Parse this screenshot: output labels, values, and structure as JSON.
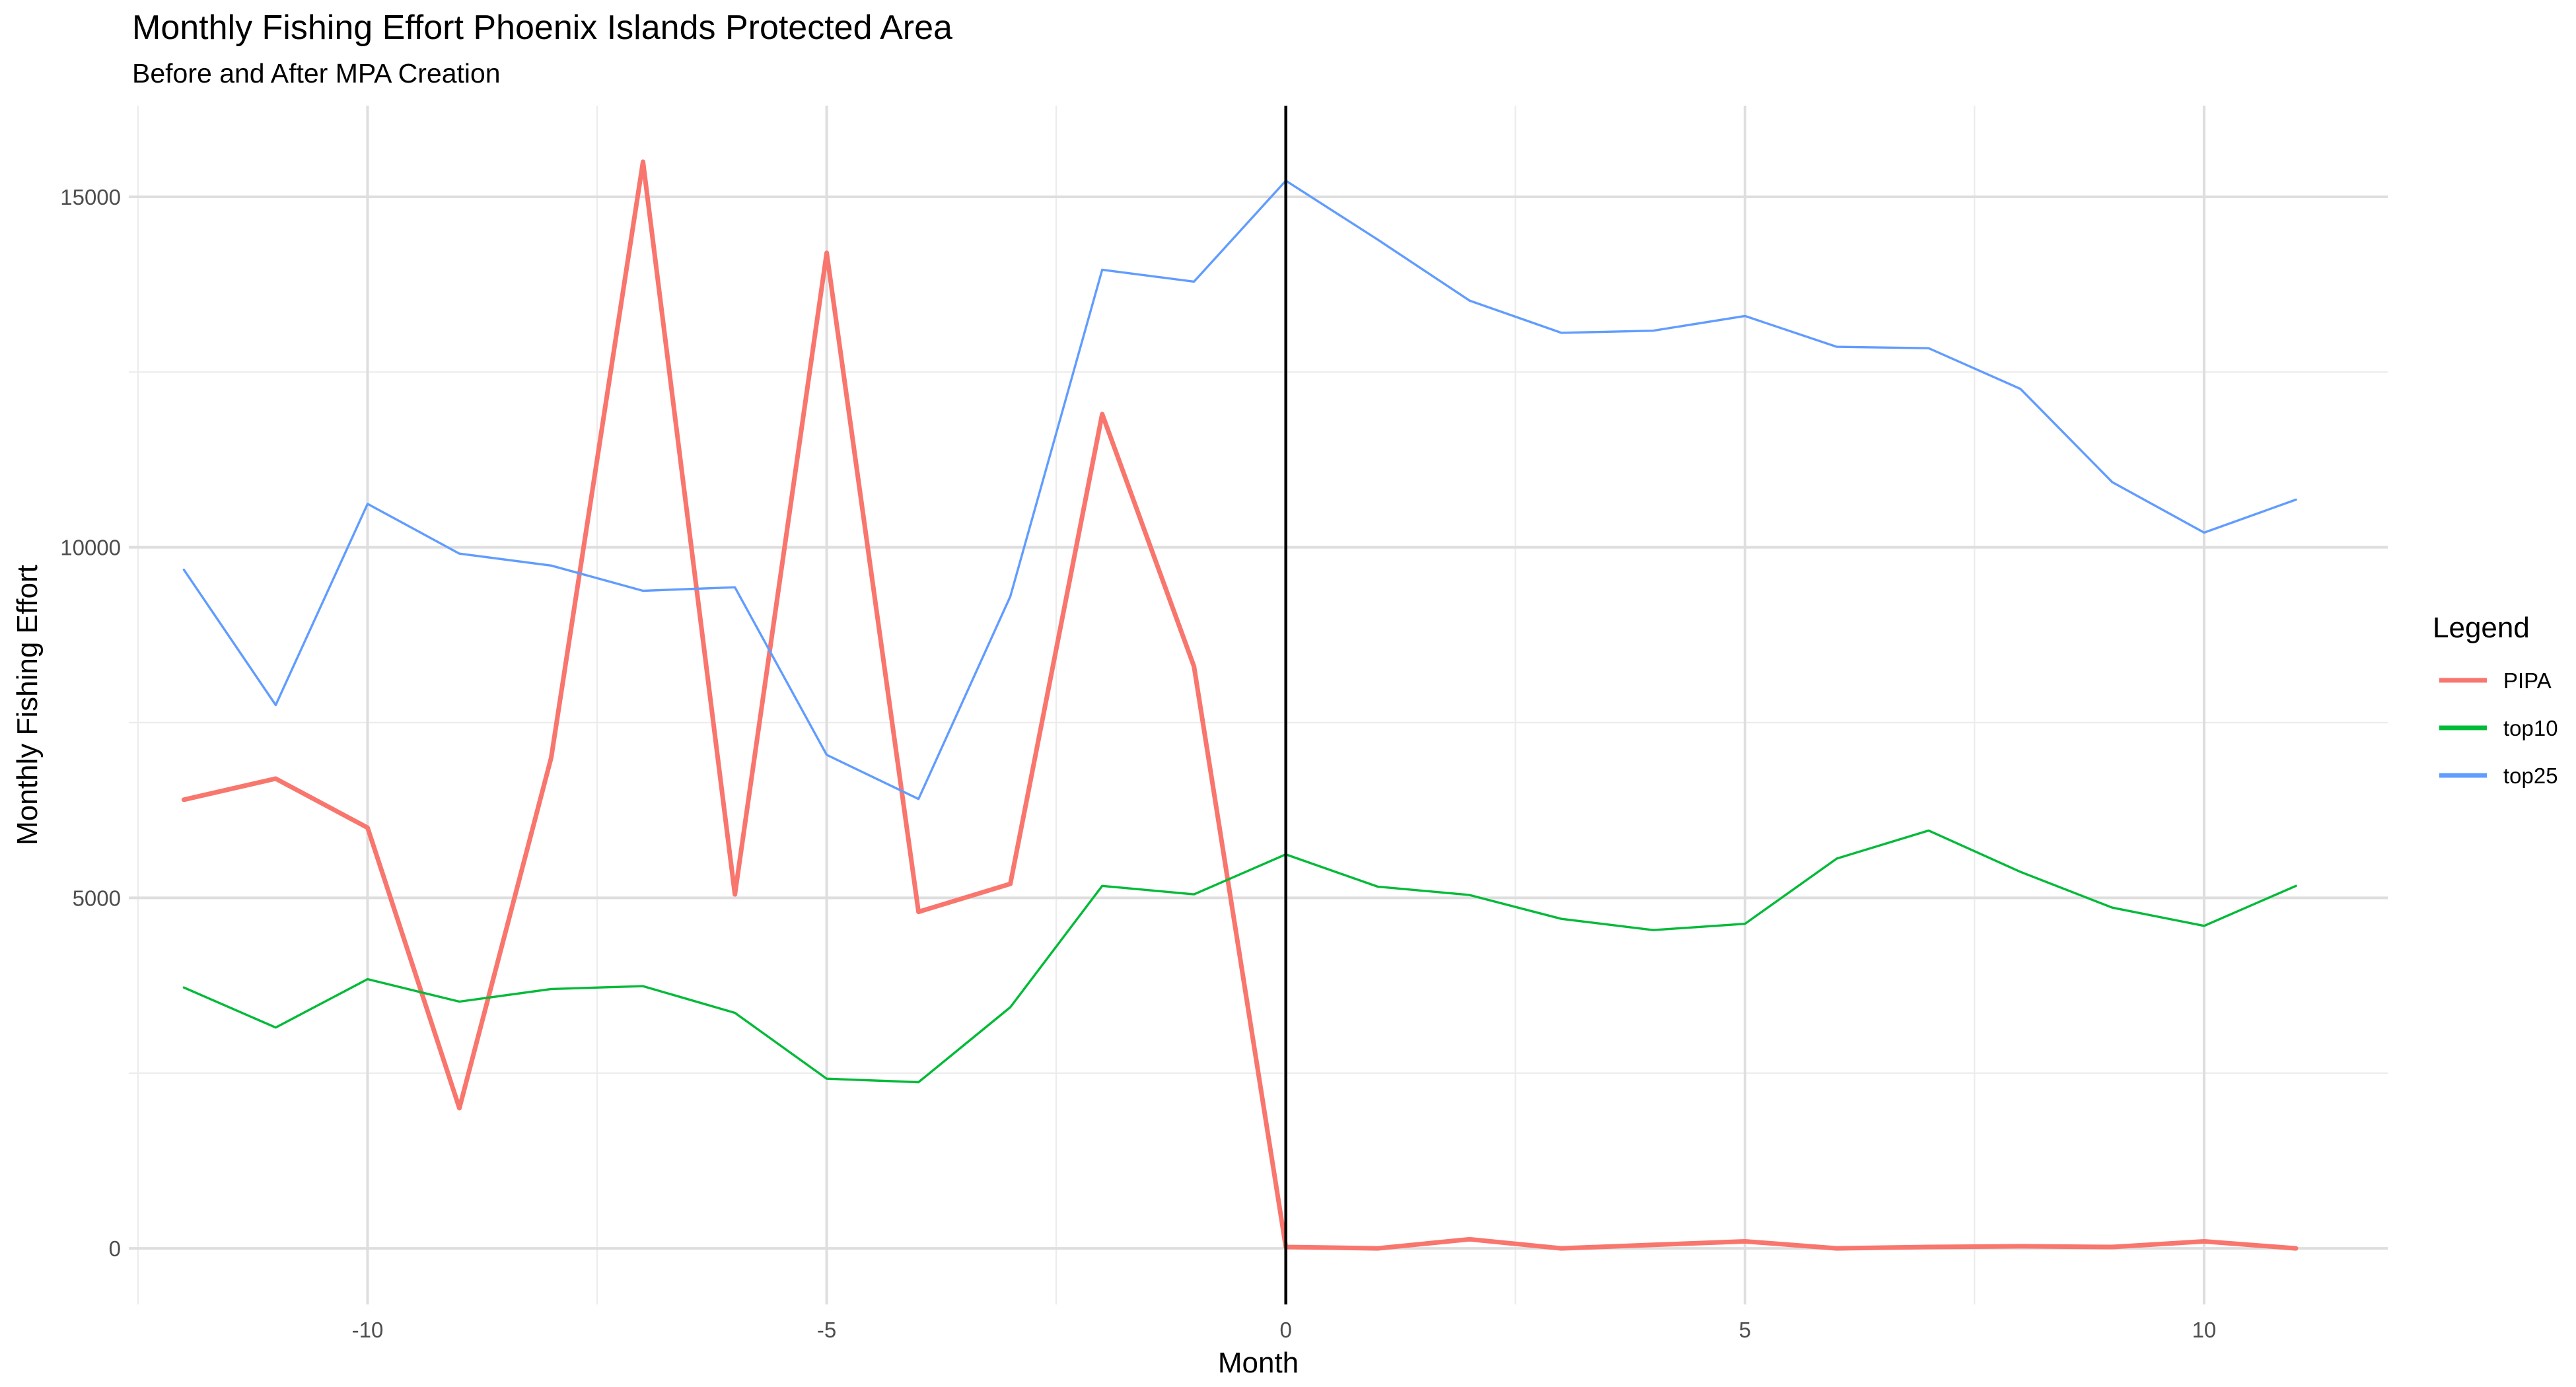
{
  "chart_data": {
    "type": "line",
    "title": "Monthly Fishing Effort Phoenix Islands Protected Area",
    "subtitle": "Before and After MPA Creation",
    "xlabel": "Month",
    "ylabel": "Monthly Fishing Effort",
    "xlim": [
      -12.6,
      12.0
    ],
    "ylim": [
      -800,
      16300
    ],
    "x_ticks": [
      -10,
      -5,
      0,
      5,
      10
    ],
    "x_ticks_minor": [
      -12.5,
      -7.5,
      -2.5,
      2.5,
      7.5
    ],
    "y_ticks": [
      0,
      5000,
      10000,
      15000
    ],
    "y_ticks_minor": [
      2500,
      7500,
      12500
    ],
    "grid": true,
    "vline_x": 0,
    "legend": {
      "title": "Legend",
      "position": "right"
    },
    "x": [
      -12,
      -11,
      -10,
      -9,
      -8,
      -7,
      -6,
      -5,
      -4,
      -3,
      -2,
      -1,
      0,
      1,
      2,
      3,
      4,
      5,
      6,
      7,
      8,
      9,
      10,
      11
    ],
    "series": [
      {
        "name": "PIPA",
        "color": "#F8766D",
        "values": [
          6400,
          6700,
          6000,
          2000,
          7000,
          15500,
          5050,
          14200,
          4800,
          5200,
          11900,
          8300,
          20,
          0,
          130,
          0,
          50,
          100,
          0,
          20,
          30,
          20,
          100,
          0
        ]
      },
      {
        "name": "top10",
        "color": "#00BA38",
        "values": [
          3720,
          3150,
          3840,
          3520,
          3700,
          3740,
          3360,
          2420,
          2370,
          3440,
          5170,
          5050,
          5620,
          5160,
          5040,
          4700,
          4540,
          4630,
          5560,
          5960,
          5370,
          4860,
          4600,
          5170
        ]
      },
      {
        "name": "top25",
        "color": "#619CFF",
        "values": [
          9680,
          7750,
          10620,
          9910,
          9740,
          9380,
          9430,
          7040,
          6410,
          9300,
          13960,
          13790,
          15230,
          14390,
          13520,
          13060,
          13090,
          13300,
          12860,
          12840,
          12260,
          10930,
          10210,
          10680
        ]
      }
    ]
  }
}
